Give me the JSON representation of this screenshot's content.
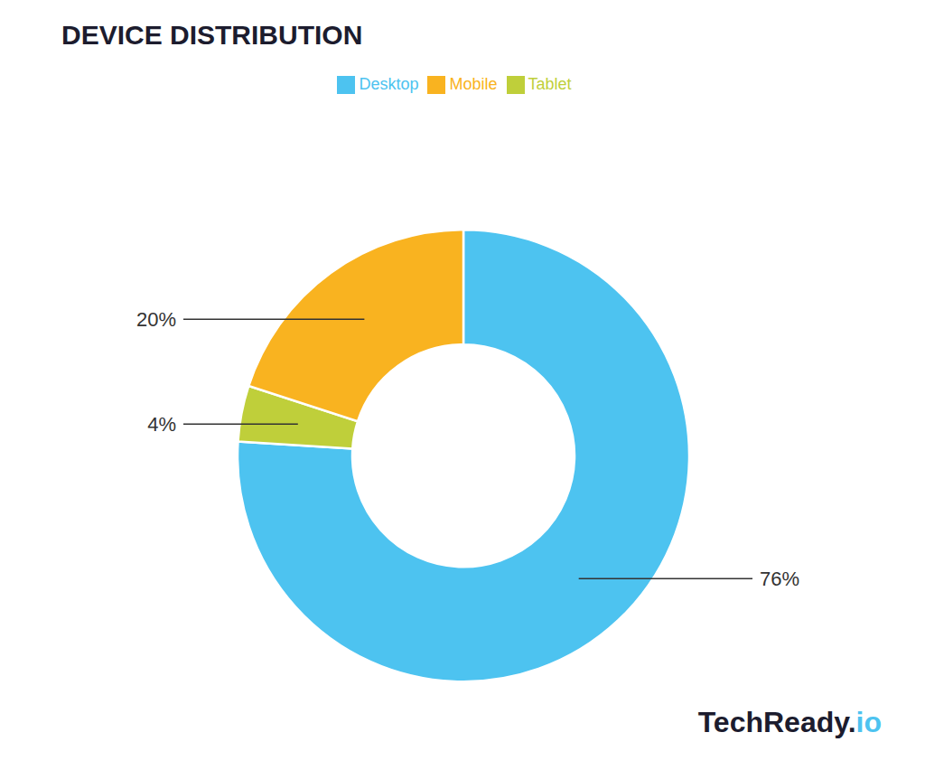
{
  "chart_data": {
    "type": "pie",
    "title": "DEVICE DISTRIBUTION",
    "categories": [
      "Desktop",
      "Tablet",
      "Mobile"
    ],
    "values": [
      76,
      4,
      20
    ],
    "value_labels": [
      "76%",
      "4%",
      "20%"
    ],
    "colors": [
      "#4DC3F0",
      "#BFCF3A",
      "#F9B320"
    ],
    "data_labels": true,
    "legend": "top",
    "annotations": [
      {
        "text": "TechReady.",
        "color": "#1C1C2E"
      },
      {
        "text": "io",
        "color": "#4DC3F0"
      }
    ]
  }
}
